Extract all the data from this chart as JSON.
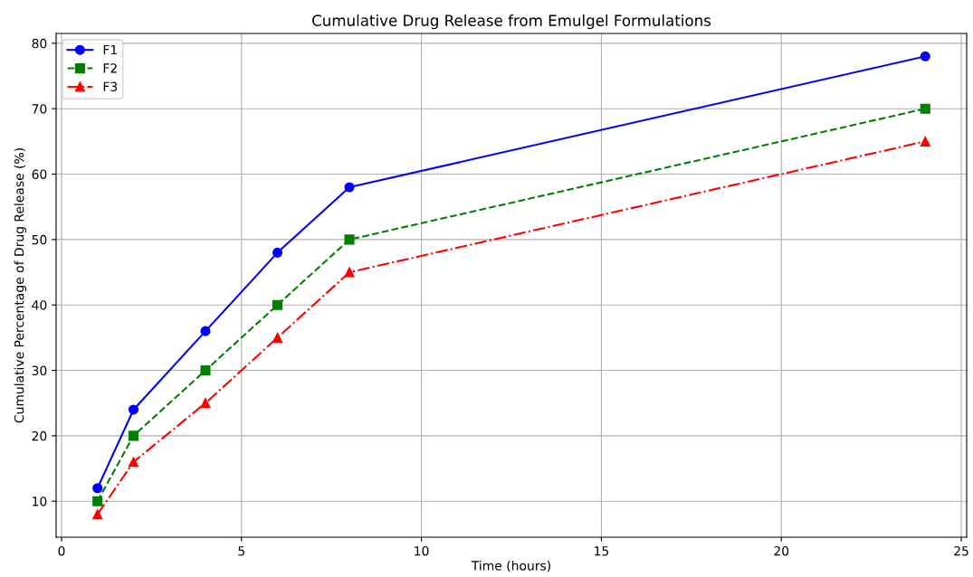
{
  "chart_data": {
    "type": "line",
    "title": "Cumulative Drug Release from Emulgel Formulations",
    "xlabel": "Time (hours)",
    "ylabel": "Cumulative Percentage of Drug Release (%)",
    "x": [
      1,
      2,
      4,
      6,
      8,
      24
    ],
    "series": [
      {
        "name": "F1",
        "color": "#0000ff",
        "marker": "circle",
        "line_style": "solid",
        "values": [
          12,
          24,
          36,
          48,
          58,
          78
        ]
      },
      {
        "name": "F2",
        "color": "#008000",
        "marker": "square",
        "line_style": "dashed",
        "values": [
          10,
          20,
          30,
          40,
          50,
          70
        ]
      },
      {
        "name": "F3",
        "color": "#ff0000",
        "marker": "triangle",
        "line_style": "dashdot",
        "values": [
          8,
          16,
          25,
          35,
          45,
          65
        ]
      }
    ],
    "xlim": [
      -0.15,
      25.15
    ],
    "xticks": [
      0,
      5,
      10,
      15,
      20,
      25
    ],
    "ylim": [
      4.5,
      81.5
    ],
    "yticks": [
      10,
      20,
      30,
      40,
      50,
      60,
      70,
      80
    ],
    "grid": true,
    "legend": "top left"
  }
}
